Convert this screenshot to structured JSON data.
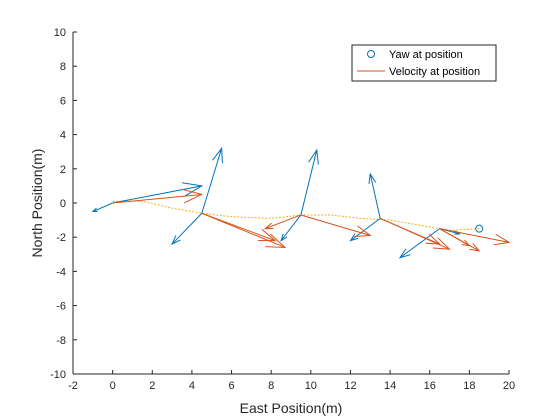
{
  "chart_data": {
    "type": "scatter",
    "title": "",
    "xlabel": "East Position(m)",
    "ylabel": "North Position(m)",
    "xlim": [
      -2,
      20
    ],
    "ylim": [
      -10,
      10
    ],
    "xticks": [
      "-2",
      "0",
      "2",
      "4",
      "6",
      "8",
      "10",
      "12",
      "14",
      "16",
      "18",
      "20"
    ],
    "yticks": [
      "-10",
      "-8",
      "-6",
      "-4",
      "-2",
      "0",
      "2",
      "4",
      "6",
      "8",
      "10"
    ],
    "grid": false,
    "legend_position": "top-right",
    "colors": {
      "yaw": "#0072BD",
      "velocity": "#D95319",
      "trajectory": "#EDB120",
      "axis": "#262626"
    },
    "legend": [
      {
        "label": "Yaw at position",
        "marker": "circle"
      },
      {
        "label": "Velocity at position",
        "marker": "line"
      }
    ],
    "trajectory": [
      [
        0,
        0.1
      ],
      [
        1.5,
        0.1
      ],
      [
        3,
        -0.3
      ],
      [
        4.5,
        -0.6
      ],
      [
        6,
        -0.8
      ],
      [
        8,
        -0.9
      ],
      [
        9.5,
        -0.7
      ],
      [
        11,
        -0.7
      ],
      [
        12.5,
        -0.9
      ],
      [
        14,
        -1.0
      ],
      [
        15.5,
        -1.3
      ],
      [
        17,
        -1.6
      ],
      [
        18.5,
        -1.5
      ]
    ],
    "series": [
      {
        "name": "Yaw at position",
        "points": [
          [
            0,
            0
          ],
          [
            0,
            0
          ],
          [
            4.5,
            -0.6
          ],
          [
            4.5,
            -0.6
          ],
          [
            9.5,
            -0.7
          ],
          [
            9.5,
            -0.7
          ],
          [
            13.5,
            -0.9
          ],
          [
            13.5,
            -0.9
          ],
          [
            16.5,
            -1.5
          ],
          [
            16.5,
            -1.5
          ]
        ],
        "directions": [
          [
            4.5,
            1.0
          ],
          [
            -1.0,
            -0.5
          ],
          [
            1.0,
            3.8
          ],
          [
            -1.5,
            -1.8
          ],
          [
            0.8,
            3.8
          ],
          [
            -1.0,
            -1.5
          ],
          [
            -0.5,
            2.6
          ],
          [
            -1.5,
            -1.3
          ],
          [
            1.0,
            -0.3
          ],
          [
            -2.0,
            -1.7
          ]
        ]
      },
      {
        "name": "Velocity at position",
        "points": [
          [
            0,
            0
          ],
          [
            4.5,
            -0.6
          ],
          [
            4.5,
            -0.6
          ],
          [
            9.5,
            -0.7
          ],
          [
            9.5,
            -0.7
          ],
          [
            13.5,
            -0.9
          ],
          [
            13.5,
            -0.9
          ],
          [
            16.5,
            -1.5
          ],
          [
            16.5,
            -1.5
          ],
          [
            16.5,
            -1.5
          ]
        ],
        "directions": [
          [
            4.5,
            0.5
          ],
          [
            4.2,
            -2.0
          ],
          [
            3.7,
            -1.6
          ],
          [
            3.5,
            -1.2
          ],
          [
            -1.8,
            -0.8
          ],
          [
            3.0,
            -1.5
          ],
          [
            3.5,
            -1.8
          ],
          [
            1.5,
            -1.0
          ],
          [
            2.0,
            -1.3
          ],
          [
            3.5,
            -0.8
          ]
        ]
      }
    ],
    "yaw_marker": [
      18.5,
      -1.5
    ]
  }
}
